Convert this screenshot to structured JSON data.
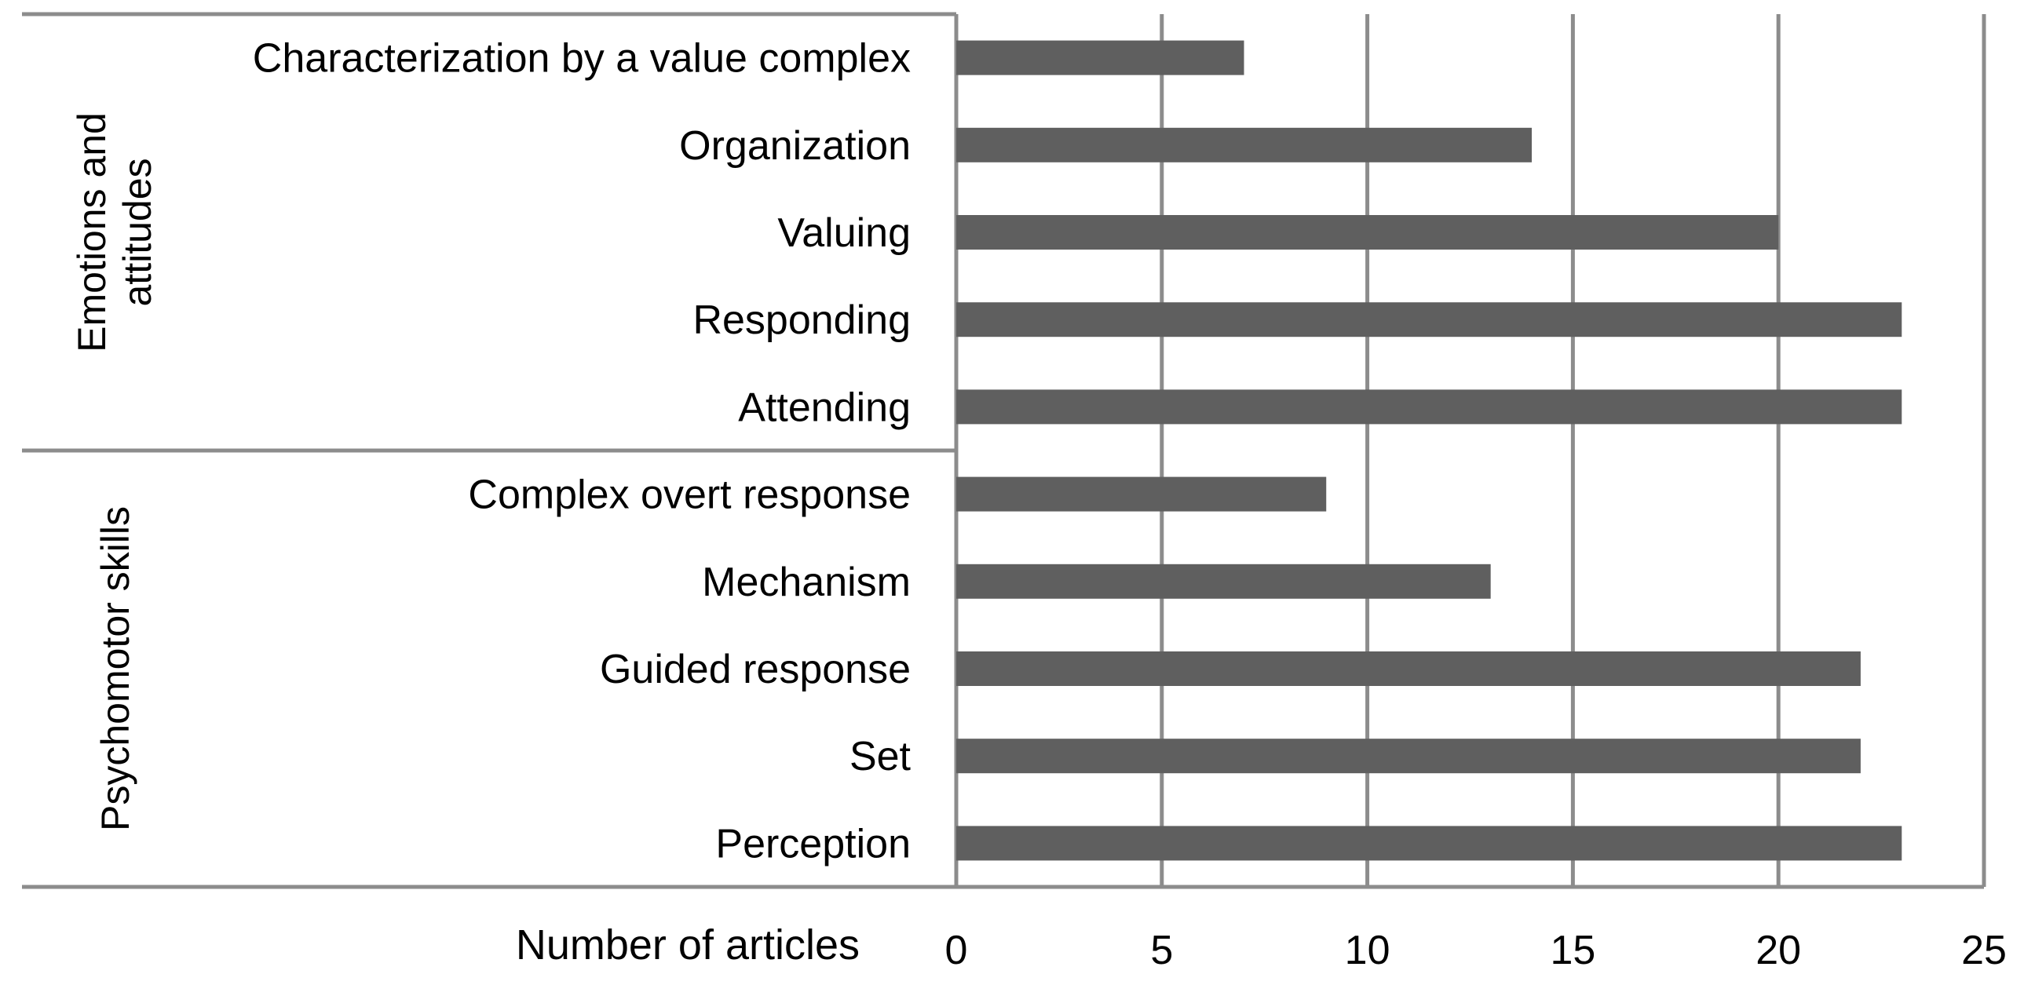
{
  "chart_data": {
    "type": "bar",
    "orientation": "horizontal",
    "title": "",
    "xlabel": "Number of articles",
    "xlim": [
      0,
      25
    ],
    "xticks": [
      0,
      5,
      10,
      15,
      20,
      25
    ],
    "grid": true,
    "colors": {
      "bar": "#5f5f5f",
      "grid": "#8c8c8c",
      "frame": "#8c8c8c"
    },
    "groups": [
      {
        "name": "Emotions and attitudes",
        "categories": [
          "Characterization by a value complex",
          "Organization",
          "Valuing",
          "Responding",
          "Attending"
        ],
        "values": [
          7,
          14,
          20,
          23,
          23
        ]
      },
      {
        "name": "Psychomotor skills",
        "categories": [
          "Complex overt response",
          "Mechanism",
          "Guided response",
          "Set",
          "Perception"
        ],
        "values": [
          9,
          13,
          22,
          22,
          23
        ]
      }
    ]
  }
}
